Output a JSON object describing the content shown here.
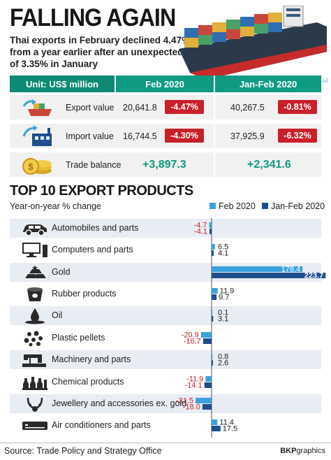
{
  "header": {
    "title": "FALLING AGAIN",
    "subtitle_lines": [
      "Thai exports in February declined 4.47%",
      "from a year earlier after an unexpected rise",
      "of 3.35% in January"
    ]
  },
  "summary_table": {
    "unit_label": "Unit: US$ million",
    "col1": "Feb 2020",
    "col2": "Jan-Feb 2020",
    "rows": [
      {
        "label": "Export value",
        "feb_value": "20,641.8",
        "feb_change": "-4.47%",
        "janfeb_value": "40,267.5",
        "janfeb_change": "-0.81%",
        "icon": "export-ship-icon"
      },
      {
        "label": "Import value",
        "feb_value": "16,744.5",
        "feb_change": "-4.30%",
        "janfeb_value": "37,925.9",
        "janfeb_change": "-6.32%",
        "icon": "import-factory-icon"
      },
      {
        "label": "Trade balance",
        "feb_value": "+3,897.3",
        "janfeb_value": "+2,341.6",
        "icon": "coins-icon"
      }
    ]
  },
  "chart_data": {
    "type": "bar",
    "orientation": "horizontal",
    "title": "TOP 10 EXPORT PRODUCTS",
    "subtitle": "Year-on-year % change",
    "categories": [
      "Automobiles and parts",
      "Computers and parts",
      "Gold",
      "Rubber products",
      "Oil",
      "Plastic pellets",
      "Machinery and parts",
      "Chemical products",
      "Jewellery and accessories ex. gold",
      "Air conditioners and parts"
    ],
    "series": [
      {
        "name": "Feb 2020",
        "values": [
          -4.7,
          6.5,
          178.4,
          11.9,
          0.1,
          -20.9,
          0.8,
          -11.9,
          -31.5,
          11.4
        ],
        "labels": [
          "-4.7",
          "6.5",
          "178.4",
          "11.9",
          "0.1",
          "-20.9",
          "0.8",
          "-11.9",
          "-31.5",
          "11.4"
        ],
        "color": "#3aa2dd"
      },
      {
        "name": "Jan-Feb 2020",
        "values": [
          -4.1,
          4.1,
          223.7,
          9.7,
          3.1,
          -16.7,
          2.6,
          -14.1,
          -18.0,
          17.5
        ],
        "labels": [
          "-4.1",
          "4.1",
          "223.7",
          "9.7",
          "3.1",
          "-16.7",
          "2.6",
          "-14.1",
          "-18.0",
          "17.5"
        ],
        "color": "#1f4e8c"
      }
    ],
    "icons": [
      "car-icon",
      "computer-icon",
      "gold-bars-icon",
      "rubber-bucket-icon",
      "oil-drop-icon",
      "plastic-pellets-icon",
      "sewing-machine-icon",
      "chemical-bottles-icon",
      "jewellery-necklace-icon",
      "air-conditioner-icon"
    ],
    "colors": {
      "positive_label": "#1e1e1e",
      "negative_label": "#c91f2a",
      "highlight_label": "#ffffff"
    }
  },
  "footer": {
    "source": "Source: Trade Policy and Strategy Office",
    "credit_bold": "BKP",
    "credit_rest": "graphics"
  }
}
